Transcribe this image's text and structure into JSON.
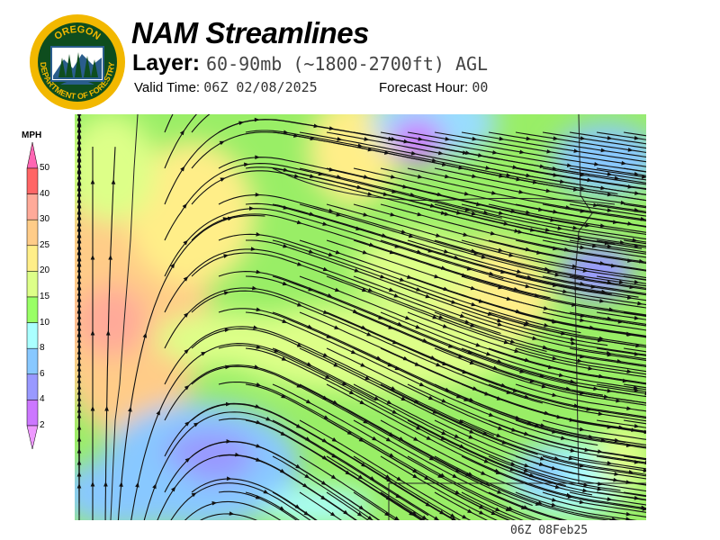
{
  "header": {
    "title": "NAM Streamlines",
    "layer_label": "Layer:",
    "layer_value": "60-90mb (~1800-2700ft) AGL",
    "valid_time_label": "Valid Time:",
    "valid_time_value": "06Z 02/08/2025",
    "forecast_hour_label": "Forecast Hour:",
    "forecast_hour_value": "00"
  },
  "logo": {
    "text_top": "OREGON",
    "text_bottom": "DEPARTMENT OF FORESTRY",
    "colors": {
      "ring": "#f2b800",
      "field": "#0e4d1e",
      "water": "#2a5d8c"
    }
  },
  "colorbar": {
    "unit": "MPH",
    "labels": [
      "50",
      "40",
      "30",
      "25",
      "20",
      "15",
      "10",
      "8",
      "6",
      "4",
      "2"
    ],
    "colors": [
      "#ff66b3",
      "#ff6666",
      "#ffaa99",
      "#ffcc88",
      "#ffee88",
      "#ddff88",
      "#99ff66",
      "#aaffff",
      "#88c8ff",
      "#9999ff",
      "#cc77ff",
      "#ee99ff"
    ]
  },
  "footer": {
    "timestamp": "06Z 08Feb25"
  }
}
